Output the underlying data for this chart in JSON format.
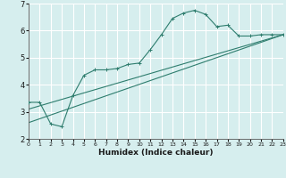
{
  "xlabel": "Humidex (Indice chaleur)",
  "bg_color": "#d6eeee",
  "grid_color": "#b8d8d8",
  "line_color": "#2e7d6e",
  "xlim": [
    0,
    23
  ],
  "ylim": [
    2,
    7
  ],
  "yticks": [
    2,
    3,
    4,
    5,
    6,
    7
  ],
  "xticks": [
    0,
    1,
    2,
    3,
    4,
    5,
    6,
    7,
    8,
    9,
    10,
    11,
    12,
    13,
    14,
    15,
    16,
    17,
    18,
    19,
    20,
    21,
    22,
    23
  ],
  "series1_x": [
    0,
    1,
    2,
    3,
    4,
    5,
    6,
    7,
    8,
    9,
    10,
    11,
    12,
    13,
    14,
    15,
    16,
    17,
    18,
    19,
    20,
    21,
    22,
    23
  ],
  "series1_y": [
    3.35,
    3.35,
    2.55,
    2.45,
    3.6,
    4.35,
    4.55,
    4.55,
    4.6,
    4.75,
    4.8,
    5.3,
    5.85,
    6.45,
    6.65,
    6.75,
    6.6,
    6.15,
    6.2,
    5.8,
    5.8,
    5.85,
    5.85,
    5.85
  ],
  "series2_x": [
    0,
    23
  ],
  "series2_y": [
    3.1,
    5.85
  ],
  "series3_x": [
    0,
    23
  ],
  "series3_y": [
    2.6,
    5.85
  ],
  "xtick_fontsize": 4.5,
  "ytick_fontsize": 6.0,
  "xlabel_fontsize": 6.5
}
